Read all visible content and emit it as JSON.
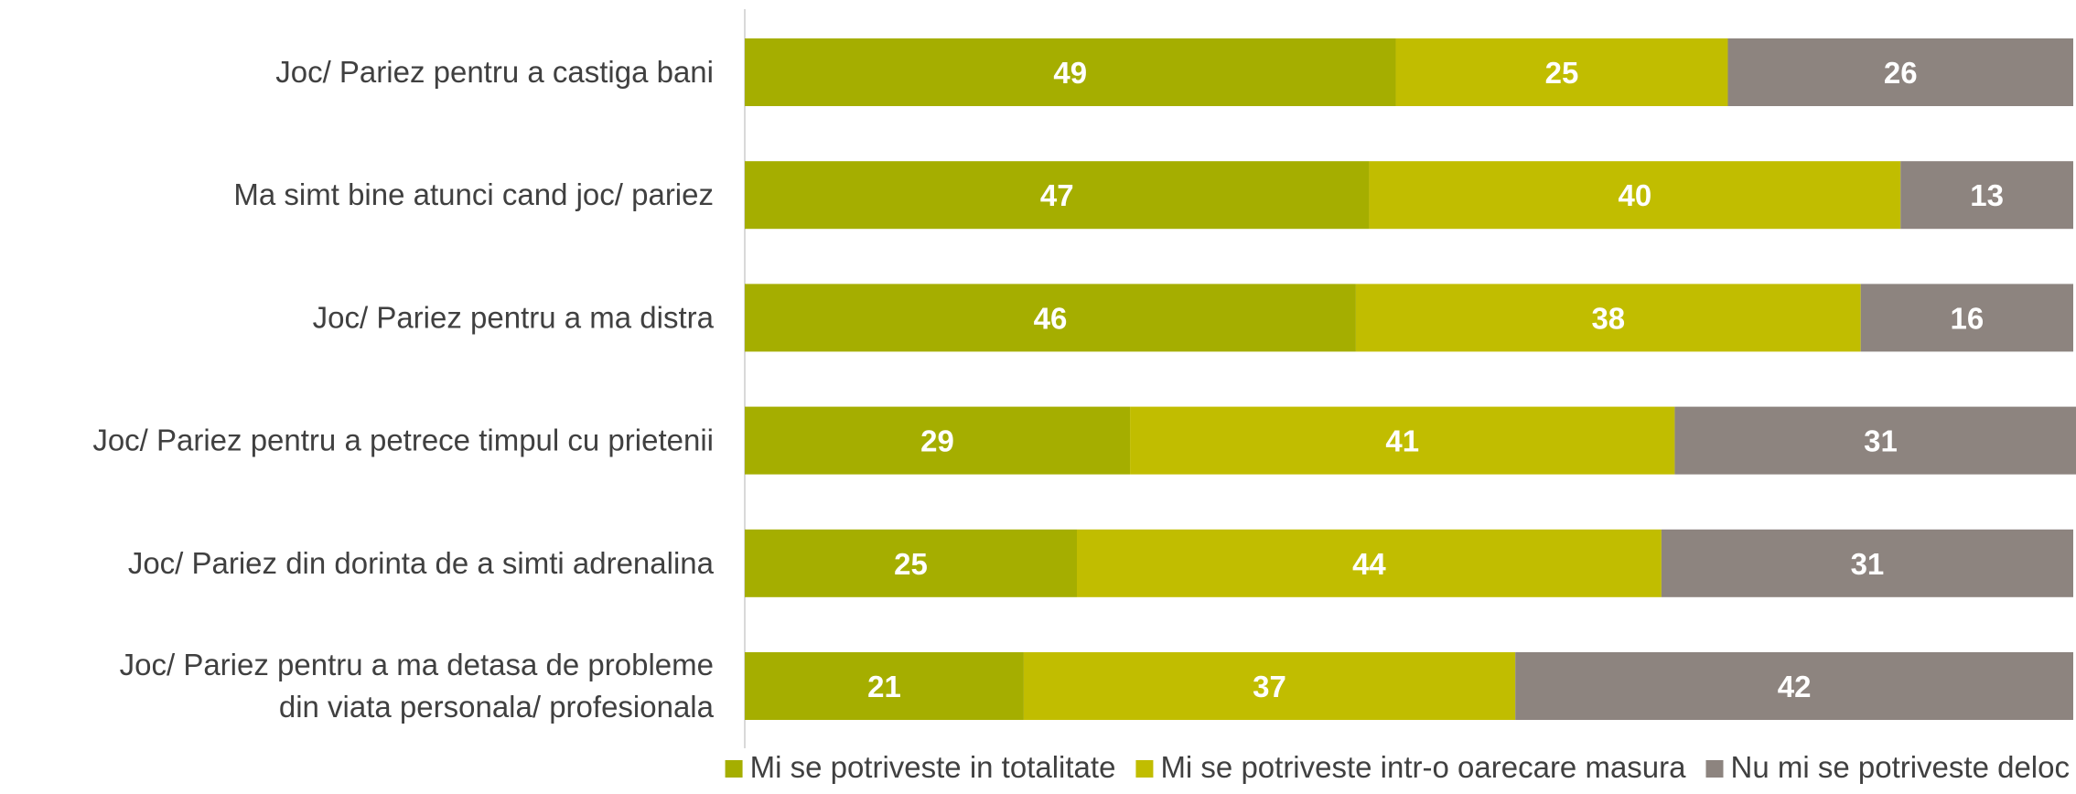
{
  "chart_data": {
    "type": "bar",
    "orientation": "horizontal",
    "stacked": true,
    "percent_stacked": true,
    "title": "",
    "xlabel": "",
    "ylabel": "",
    "xlim": [
      0,
      100
    ],
    "grid": false,
    "legend_position": "bottom-right",
    "categories": [
      [
        "Joc/ Pariez pentru a castiga bani"
      ],
      [
        "Ma simt bine atunci cand joc/ pariez"
      ],
      [
        "Joc/ Pariez pentru a ma distra"
      ],
      [
        "Joc/ Pariez pentru a petrece timpul cu prietenii"
      ],
      [
        "Joc/ Pariez din dorinta de a simti adrenalina"
      ],
      [
        "Joc/ Pariez pentru a ma detasa de probleme",
        "din viata personala/ profesionala"
      ]
    ],
    "series": [
      {
        "name": "Mi se potriveste in totalitate",
        "color": "#a5ae00",
        "values": [
          49,
          47,
          46,
          29,
          25,
          21
        ]
      },
      {
        "name": "Mi se potriveste intr-o oarecare masura",
        "color": "#c1bd00",
        "values": [
          25,
          40,
          38,
          41,
          44,
          37
        ]
      },
      {
        "name": "Nu mi se potriveste deloc",
        "color": "#8d847f",
        "values": [
          26,
          13,
          16,
          31,
          31,
          42
        ]
      }
    ]
  }
}
